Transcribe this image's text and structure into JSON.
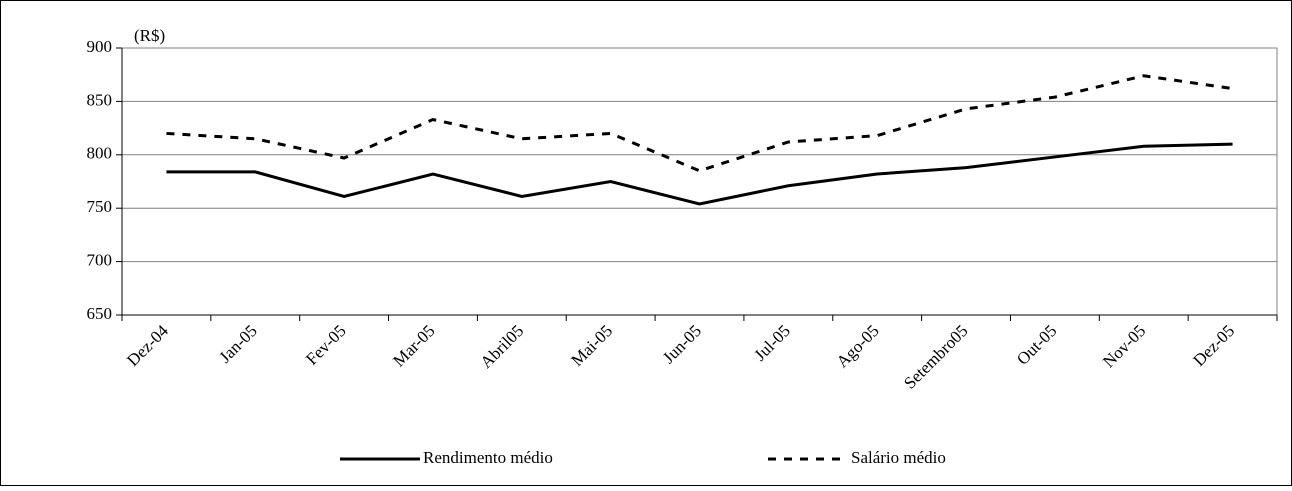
{
  "chart_data": {
    "type": "line",
    "y_unit_label": "(R$)",
    "categories": [
      "Dez-04",
      "Jan-05",
      "Fev-05",
      "Mar-05",
      "Abril05",
      "Mai-05",
      "Jun-05",
      "Jul-05",
      "Ago-05",
      "Setembro05",
      "Out-05",
      "Nov-05",
      "Dez-05"
    ],
    "series": [
      {
        "name": "Rendimento médio",
        "color": "#000000",
        "dashed": false,
        "values": [
          784,
          784,
          761,
          782,
          761,
          775,
          754,
          771,
          782,
          788,
          798,
          808,
          810
        ]
      },
      {
        "name": "Salário médio",
        "color": "#000000",
        "dashed": true,
        "values": [
          820,
          815,
          797,
          833,
          815,
          820,
          785,
          812,
          818,
          843,
          854,
          874,
          862
        ]
      }
    ],
    "ylim": [
      650,
      900
    ],
    "yticks": [
      650,
      700,
      750,
      800,
      850,
      900
    ],
    "grid": true,
    "legend": "bottom"
  }
}
